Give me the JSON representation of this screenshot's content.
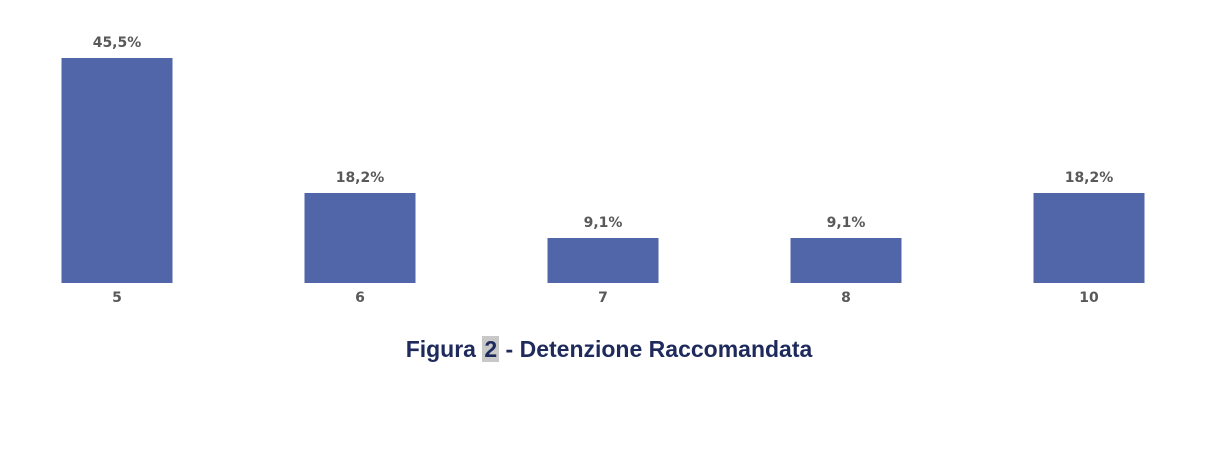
{
  "chart_data": {
    "type": "bar",
    "categories": [
      "5",
      "6",
      "7",
      "8",
      "10"
    ],
    "values": [
      45.5,
      18.2,
      9.1,
      9.1,
      18.2
    ],
    "value_labels": [
      "45,5%",
      "18,2%",
      "9,1%",
      "9,1%",
      "18,2%"
    ],
    "color": "#5066a8",
    "figure_label": "Figura",
    "figure_number": "2",
    "title": "- Detenzione Raccomandata"
  }
}
